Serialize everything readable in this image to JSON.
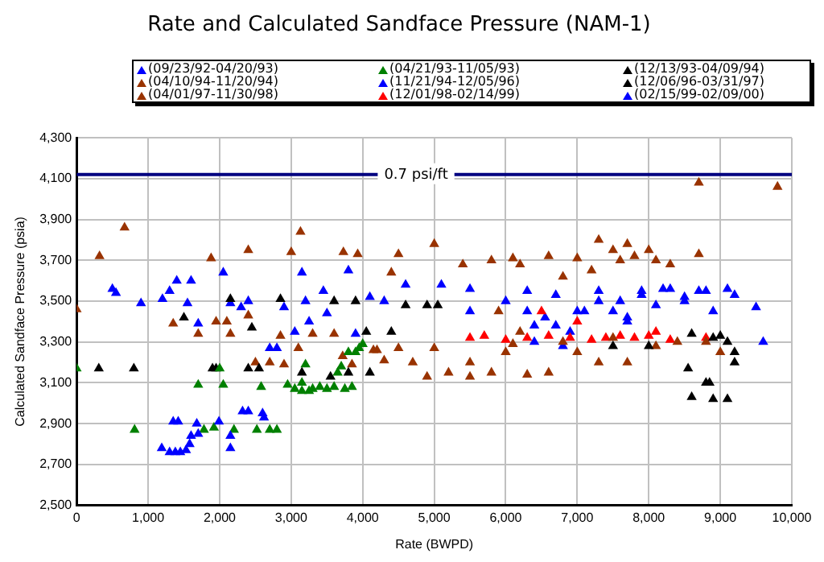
{
  "chart_data": {
    "type": "scatter",
    "title": "Rate and Calculated Sandface Pressure (NAM-1)",
    "xlabel": "Rate (BWPD)",
    "ylabel": "Calculated Sandface Pressure (psia)",
    "xlim": [
      0,
      10000
    ],
    "xticks": [
      {
        "value": 0,
        "label": "0"
      },
      {
        "value": 1000,
        "label": "1,000"
      },
      {
        "value": 2000,
        "label": "2,000"
      },
      {
        "value": 3000,
        "label": "3,000"
      },
      {
        "value": 4000,
        "label": "4,000"
      },
      {
        "value": 5000,
        "label": "5,000"
      },
      {
        "value": 6000,
        "label": "6,000"
      },
      {
        "value": 7000,
        "label": "7,000"
      },
      {
        "value": 8000,
        "label": "8,000"
      },
      {
        "value": 9000,
        "label": "9,000"
      },
      {
        "value": 10000,
        "label": "10,000"
      }
    ],
    "ylim": [
      2500,
      4300
    ],
    "yticks": [
      {
        "value": 2500,
        "label": "2,500"
      },
      {
        "value": 2700,
        "label": "2,700"
      },
      {
        "value": 2900,
        "label": "2,900"
      },
      {
        "value": 3100,
        "label": "3,100"
      },
      {
        "value": 3300,
        "label": "3,300"
      },
      {
        "value": 3500,
        "label": "3,500"
      },
      {
        "value": 3700,
        "label": "3,700"
      },
      {
        "value": 3900,
        "label": "3,900"
      },
      {
        "value": 4100,
        "label": "4,100"
      },
      {
        "value": 4300,
        "label": "4,300"
      }
    ],
    "grid": true,
    "legend": "top",
    "marker": "triangle",
    "ref_lines": [
      {
        "axis": "y",
        "value": 4120,
        "label": "0.7 psi/ft",
        "color": "#000080"
      }
    ],
    "series": [
      {
        "name": "(09/23/92-04/20/93)",
        "color": "#0000ff",
        "x": [
          1190,
          1300,
          1380,
          1450,
          1530,
          1580,
          1600,
          1700,
          1680,
          1350,
          1420,
          1990,
          2150,
          2150,
          2320,
          2400,
          2600,
          2620
        ],
        "values": [
          2780,
          2760,
          2760,
          2760,
          2770,
          2800,
          2840,
          2850,
          2900,
          2910,
          2910,
          2910,
          2840,
          2780,
          2960,
          2960,
          2950,
          2930
        ]
      },
      {
        "name": "(04/21/93-11/05/93)",
        "color": "#008000",
        "x": [
          0,
          810,
          1700,
          1780,
          1920,
          2000,
          2050,
          2200,
          2520,
          2580,
          2700,
          2800,
          2950,
          3050,
          3150,
          3200,
          3300,
          3400,
          3500,
          3600,
          3650,
          3700,
          3750,
          3850,
          3900,
          3950,
          4000,
          3800,
          3150,
          3250
        ],
        "values": [
          3170,
          2870,
          3090,
          2870,
          2880,
          3170,
          3090,
          2870,
          2870,
          3080,
          2870,
          2870,
          3090,
          3070,
          3100,
          3190,
          3070,
          3080,
          3070,
          3080,
          3150,
          3180,
          3070,
          3080,
          3250,
          3270,
          3290,
          3250,
          3060,
          3060
        ]
      },
      {
        "name": "(12/13/93-04/09/94)",
        "color": "#000000",
        "x": [
          310,
          800,
          1500,
          1900,
          1950,
          2150,
          2400,
          2450,
          2550,
          2850,
          3150,
          3600,
          3550,
          3900,
          3800,
          4050,
          4100,
          4400,
          4600,
          4900,
          5050
        ],
        "values": [
          3170,
          3170,
          3420,
          3170,
          3170,
          3510,
          3170,
          3370,
          3170,
          3510,
          3150,
          3500,
          3130,
          3500,
          3150,
          3350,
          3150,
          3350,
          3480,
          3480,
          3480
        ]
      },
      {
        "name": "(04/10/94-11/20/94)",
        "color": "#993300",
        "x": [
          670,
          320,
          1880,
          2400,
          3000,
          3130,
          3730,
          3930,
          4400,
          4150,
          5000,
          4500,
          5400,
          5800,
          6100,
          6200,
          6600,
          7000,
          7300,
          7500,
          7600,
          7700,
          7800,
          8000,
          8100,
          8300,
          7200,
          6800,
          8700,
          9800,
          8700,
          5900,
          6200,
          6800
        ],
        "values": [
          3860,
          3720,
          3710,
          3750,
          3740,
          3840,
          3740,
          3730,
          3640,
          3260,
          3780,
          3730,
          3680,
          3700,
          3710,
          3680,
          3720,
          3710,
          3800,
          3750,
          3700,
          3780,
          3720,
          3750,
          3700,
          3680,
          3650,
          3620,
          4080,
          4060,
          3730,
          3450,
          3350,
          3300
        ]
      },
      {
        "name": "(11/21/94-12/05/96)",
        "color": "#0000ff",
        "x": [
          500,
          550,
          900,
          1200,
          1300,
          1400,
          1550,
          1600,
          1700,
          2050,
          2150,
          2300,
          2400,
          2700,
          2800,
          2900,
          3050,
          3150,
          3200,
          3250,
          3450,
          3500,
          3800,
          3900,
          4100,
          4300,
          4600,
          5100,
          5500,
          6000,
          6300,
          6700,
          7000,
          7300,
          7600,
          7900,
          8200,
          8500,
          8800,
          9200,
          9500,
          9600,
          6400,
          5500,
          7700
        ],
        "values": [
          3560,
          3540,
          3490,
          3510,
          3550,
          3600,
          3490,
          3600,
          3390,
          3640,
          3490,
          3470,
          3500,
          3270,
          3270,
          3470,
          3350,
          3640,
          3500,
          3400,
          3550,
          3440,
          3650,
          3340,
          3520,
          3500,
          3580,
          3580,
          3560,
          3500,
          3550,
          3530,
          3450,
          3550,
          3500,
          3530,
          3560,
          3500,
          3550,
          3530,
          3470,
          3300,
          3380,
          3450,
          3420
        ]
      },
      {
        "name": "(12/06/96-03/31/97)",
        "color": "#000000",
        "x": [
          7500,
          8000,
          8600,
          8900,
          9100,
          9200,
          9200,
          8800,
          8850,
          8550,
          8600,
          8900,
          9100,
          9000
        ],
        "values": [
          3280,
          3280,
          3340,
          3320,
          3300,
          3250,
          3200,
          3100,
          3100,
          3170,
          3030,
          3020,
          3020,
          3330
        ]
      },
      {
        "name": "(04/01/97-11/30/98)",
        "color": "#993300",
        "x": [
          0,
          1350,
          1700,
          1950,
          2100,
          2150,
          2400,
          2500,
          2700,
          2850,
          2900,
          3100,
          3300,
          3600,
          3720,
          3850,
          4200,
          4300,
          4500,
          4700,
          5000,
          5200,
          5500,
          5800,
          6000,
          6300,
          6600,
          7000,
          7300,
          7700,
          8100,
          8400,
          8800,
          9000,
          4900,
          5500,
          6100,
          7500
        ],
        "values": [
          3460,
          3390,
          3340,
          3400,
          3400,
          3340,
          3430,
          3200,
          3200,
          3330,
          3190,
          3270,
          3340,
          3340,
          3230,
          3190,
          3260,
          3210,
          3270,
          3200,
          3270,
          3150,
          3200,
          3150,
          3250,
          3140,
          3150,
          3250,
          3200,
          3200,
          3280,
          3300,
          3300,
          3250,
          3130,
          3130,
          3290,
          3320
        ]
      },
      {
        "name": "(12/01/98-02/14/99)",
        "color": "#ff0000",
        "x": [
          5500,
          5700,
          6000,
          6300,
          6600,
          6900,
          7200,
          7400,
          7600,
          7800,
          8000,
          8100,
          8300,
          8800,
          6500,
          7000
        ],
        "values": [
          3320,
          3330,
          3310,
          3320,
          3330,
          3320,
          3310,
          3320,
          3330,
          3320,
          3330,
          3350,
          3310,
          3320,
          3450,
          3400
        ]
      },
      {
        "name": "(02/15/99-02/09/00)",
        "color": "#0000ff",
        "x": [
          6300,
          6550,
          6700,
          6900,
          7100,
          7300,
          7500,
          7700,
          7900,
          8100,
          8300,
          8500,
          8700,
          8900,
          9100,
          6400,
          6800
        ],
        "values": [
          3450,
          3420,
          3380,
          3350,
          3450,
          3500,
          3450,
          3400,
          3550,
          3480,
          3560,
          3520,
          3550,
          3450,
          3560,
          3300,
          3280
        ]
      }
    ]
  }
}
